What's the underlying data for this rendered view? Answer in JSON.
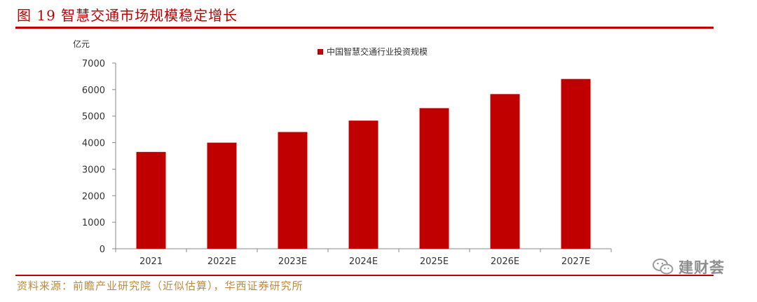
{
  "figure": {
    "title": "图 19 智慧交通市场规模稳定增长",
    "source": "资料来源：前瞻产业研究院（近似估算），华西证券研究所"
  },
  "watermark": {
    "text": "建财荟",
    "icon": "wechat-icon"
  },
  "colors": {
    "accent": "#c00000",
    "source_text": "#c08a3e"
  },
  "chart_data": {
    "type": "bar",
    "title": "",
    "unit_label": "亿元",
    "xlabel": "",
    "ylabel": "亿元",
    "categories": [
      "2021",
      "2022E",
      "2023E",
      "2024E",
      "2025E",
      "2026E",
      "2027E"
    ],
    "series": [
      {
        "name": "中国智慧交通行业投资规模",
        "color": "#c00000",
        "values": [
          3650,
          4000,
          4400,
          4830,
          5300,
          5830,
          6400
        ]
      }
    ],
    "ylim": [
      0,
      7000
    ],
    "yticks": [
      "0",
      "1000",
      "2000",
      "3000",
      "4000",
      "5000",
      "6000",
      "7000"
    ],
    "legend": "top-center",
    "grid": false
  }
}
